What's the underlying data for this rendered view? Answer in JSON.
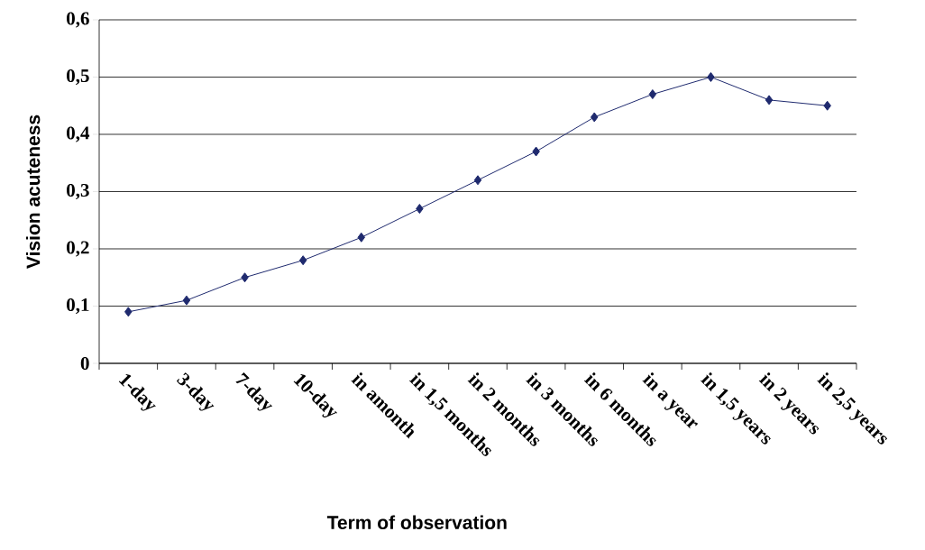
{
  "chart_data": {
    "type": "line",
    "xlabel": "Term of observation",
    "ylabel": "Vision acuteness",
    "categories": [
      "1-day",
      "3-day",
      "7-day",
      "10-day",
      "in amonth",
      "in 1,5 months",
      "in 2 months",
      "in 3 months",
      "in 6 months",
      "in a year",
      "in 1,5 years",
      "in 2 years",
      "in 2,5 years"
    ],
    "series": [
      {
        "color": "#1f2a6e",
        "values": [
          0.09,
          0.11,
          0.15,
          0.18,
          0.22,
          0.27,
          0.32,
          0.37,
          0.43,
          0.47,
          0.5,
          0.46,
          0.45
        ]
      }
    ],
    "ylim": [
      0,
      0.6
    ],
    "yticks": [
      0,
      {
        "value": 0.1,
        "label": "0,1"
      },
      {
        "value": 0.2,
        "label": "0,2"
      },
      {
        "value": 0.3,
        "label": "0,3"
      },
      {
        "value": 0.4,
        "label": "0,4"
      },
      {
        "value": 0.5,
        "label": "0,5"
      },
      {
        "value": 0.6,
        "label": "0,6"
      }
    ],
    "grid": "y",
    "marker": "diamond",
    "line_style": "solid"
  }
}
